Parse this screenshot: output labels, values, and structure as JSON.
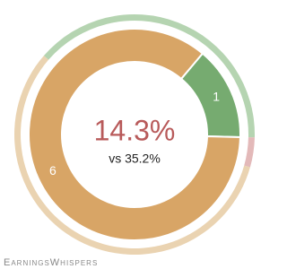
{
  "chart_data": {
    "type": "donut",
    "values": [
      1,
      6
    ],
    "colors": [
      "#76ab70",
      "#d8a566"
    ],
    "center_text": "14.3%",
    "center_subtext": "vs 35.2%",
    "outer_ring": {
      "values": [
        39,
        4,
        57
      ],
      "colors": [
        "#b5d4b1",
        "#e3b9b9",
        "#ead3b1"
      ]
    },
    "footer": "EarningsWhispers"
  }
}
